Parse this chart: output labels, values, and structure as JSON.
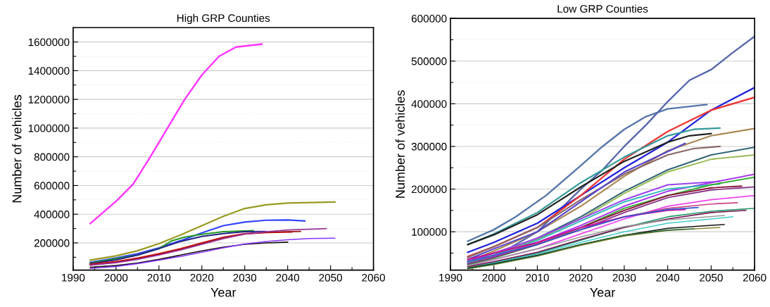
{
  "chart_data": [
    {
      "type": "line",
      "title": "High GRP Counties",
      "xlabel": "Year",
      "ylabel": "Number of vehicles",
      "xlim": [
        1990,
        2060
      ],
      "ylim": [
        10000,
        1700000
      ],
      "grid": "y",
      "legend": false,
      "marker": "none",
      "line_style": "solid",
      "xticks": [
        1990,
        {
          "value": 1995,
          "label": null
        },
        2000,
        {
          "value": 2005,
          "label": null
        },
        2010,
        {
          "value": 2015,
          "label": null
        },
        2020,
        {
          "value": 2025,
          "label": null
        },
        2030,
        {
          "value": 2035,
          "label": null
        },
        2040,
        {
          "value": 2045,
          "label": null
        },
        2050,
        {
          "value": 2055,
          "label": null
        },
        2060
      ],
      "yticks": [
        {
          "value": 100000,
          "label": null
        },
        200000,
        {
          "value": 300000,
          "label": null
        },
        400000,
        {
          "value": 500000,
          "label": null
        },
        600000,
        {
          "value": 700000,
          "label": null
        },
        800000,
        {
          "value": 900000,
          "label": null
        },
        1000000,
        {
          "value": 1100000,
          "label": null
        },
        1200000,
        {
          "value": 1300000,
          "label": null
        },
        1400000,
        {
          "value": 1500000,
          "label": null
        },
        1600000
      ],
      "series": [
        {
          "color": "#ff33ff",
          "x": [
            1994,
            2000,
            2004,
            2008,
            2012,
            2016,
            2020,
            2024,
            2028,
            2034
          ],
          "values": [
            335000,
            490000,
            610000,
            800000,
            1000000,
            1200000,
            1370000,
            1500000,
            1565000,
            1585000
          ]
        },
        {
          "color": "#999922",
          "x": [
            1994,
            2000,
            2005,
            2010,
            2015,
            2020,
            2025,
            2030,
            2035,
            2040,
            2051
          ],
          "values": [
            80000,
            110000,
            145000,
            195000,
            255000,
            320000,
            385000,
            440000,
            465000,
            478000,
            485000
          ]
        },
        {
          "color": "#3344ff",
          "x": [
            1994,
            2000,
            2005,
            2010,
            2015,
            2020,
            2025,
            2030,
            2035,
            2040,
            2044
          ],
          "values": [
            65000,
            95000,
            125000,
            165000,
            215000,
            270000,
            320000,
            345000,
            358000,
            360000,
            353000
          ]
        },
        {
          "color": "#229922",
          "x": [
            1994,
            2000,
            2005,
            2010,
            2013,
            2016,
            2020,
            2025,
            2032
          ],
          "values": [
            60000,
            90000,
            115000,
            160000,
            215000,
            240000,
            260000,
            278000,
            285000
          ]
        },
        {
          "color": "#222288",
          "x": [
            1994,
            2000,
            2005,
            2010,
            2015,
            2020,
            2025,
            2030,
            2035
          ],
          "values": [
            55000,
            82000,
            115000,
            160000,
            210000,
            245000,
            265000,
            278000,
            280000
          ]
        },
        {
          "color": "#dd1111",
          "x": [
            1994,
            2000,
            2005,
            2010,
            2015,
            2020,
            2025,
            2030,
            2035,
            2041
          ],
          "values": [
            50000,
            70000,
            95000,
            125000,
            160000,
            200000,
            240000,
            265000,
            272000,
            275000
          ]
        },
        {
          "color": "#991111",
          "x": [
            1994,
            2000,
            2005,
            2010,
            2015,
            2020,
            2025,
            2030,
            2036,
            2043
          ],
          "values": [
            45000,
            65000,
            90000,
            120000,
            155000,
            195000,
            235000,
            262000,
            275000,
            280000
          ]
        },
        {
          "color": "#993399",
          "x": [
            1994,
            2000,
            2005,
            2010,
            2015,
            2020,
            2025,
            2030,
            2035,
            2040,
            2049
          ],
          "values": [
            45000,
            62000,
            85000,
            115000,
            150000,
            190000,
            230000,
            262000,
            278000,
            290000,
            300000
          ]
        },
        {
          "color": "#111111",
          "x": [
            1994,
            2000,
            2005,
            2010,
            2015,
            2020,
            2025,
            2030,
            2035,
            2040
          ],
          "values": [
            30000,
            42000,
            60000,
            85000,
            115000,
            145000,
            170000,
            190000,
            200000,
            205000
          ]
        },
        {
          "color": "#8833ff",
          "x": [
            1994,
            2000,
            2005,
            2010,
            2015,
            2020,
            2025,
            2030,
            2035,
            2040,
            2045,
            2051
          ],
          "values": [
            22000,
            35000,
            55000,
            80000,
            105000,
            135000,
            165000,
            192000,
            210000,
            222000,
            230000,
            233000
          ]
        }
      ]
    },
    {
      "type": "line",
      "title": "Low GRP Counties",
      "xlabel": "Year",
      "ylabel": "Number of vehicles",
      "xlim": [
        1990,
        2060
      ],
      "ylim": [
        10000,
        600000
      ],
      "grid": "y",
      "legend": false,
      "marker": "none",
      "line_style": "solid",
      "xticks": [
        1990,
        {
          "value": 1995,
          "label": null
        },
        2000,
        {
          "value": 2005,
          "label": null
        },
        2010,
        {
          "value": 2015,
          "label": null
        },
        2020,
        {
          "value": 2025,
          "label": null
        },
        2030,
        {
          "value": 2035,
          "label": null
        },
        2040,
        {
          "value": 2045,
          "label": null
        },
        2050,
        {
          "value": 2055,
          "label": null
        },
        2060
      ],
      "yticks": [
        {
          "value": 50000,
          "label": null
        },
        100000,
        {
          "value": 150000,
          "label": null
        },
        200000,
        {
          "value": 250000,
          "label": null
        },
        300000,
        {
          "value": 350000,
          "label": null
        },
        400000,
        {
          "value": 450000,
          "label": null
        },
        500000,
        {
          "value": 550000,
          "label": null
        },
        600000
      ],
      "series": [
        {
          "color": "#5577aa",
          "x": [
            1994,
            2000,
            2005,
            2012,
            2020,
            2025,
            2030,
            2035,
            2040,
            2049
          ],
          "values": [
            78000,
            105000,
            135000,
            185000,
            255000,
            300000,
            340000,
            370000,
            388000,
            398000
          ]
        },
        {
          "color": "#5566aa",
          "x": [
            1994,
            2000,
            2010,
            2020,
            2025,
            2030,
            2035,
            2040,
            2045,
            2050,
            2055,
            2060
          ],
          "values": [
            20000,
            40000,
            100000,
            200000,
            245000,
            300000,
            350000,
            405000,
            455000,
            480000,
            520000,
            558000
          ]
        },
        {
          "color": "#2222dd",
          "x": [
            1994,
            2000,
            2010,
            2020,
            2030,
            2040,
            2050,
            2060
          ],
          "values": [
            52000,
            75000,
            120000,
            185000,
            250000,
            310000,
            385000,
            438000
          ]
        },
        {
          "color": "#ee3333",
          "x": [
            1994,
            2000,
            2010,
            2020,
            2030,
            2040,
            2050,
            2060
          ],
          "values": [
            42000,
            65000,
            110000,
            185000,
            270000,
            335000,
            385000,
            415000
          ]
        },
        {
          "color": "#339999",
          "x": [
            1994,
            2000,
            2010,
            2020,
            2030,
            2040,
            2046,
            2052
          ],
          "values": [
            70000,
            95000,
            145000,
            215000,
            275000,
            325000,
            340000,
            343000
          ]
        },
        {
          "color": "#222222",
          "x": [
            1994,
            2000,
            2010,
            2020,
            2030,
            2040,
            2045,
            2050
          ],
          "values": [
            70000,
            93000,
            140000,
            205000,
            265000,
            310000,
            325000,
            330000
          ]
        },
        {
          "color": "#aa8855",
          "x": [
            1994,
            2000,
            2010,
            2020,
            2030,
            2040,
            2050,
            2060
          ],
          "values": [
            30000,
            55000,
            100000,
            160000,
            230000,
            290000,
            325000,
            342000
          ]
        },
        {
          "color": "#886666",
          "x": [
            1994,
            2000,
            2010,
            2020,
            2030,
            2040,
            2046,
            2052
          ],
          "values": [
            40000,
            65000,
            110000,
            175000,
            235000,
            280000,
            295000,
            300000
          ]
        },
        {
          "color": "#5544cc",
          "x": [
            1994,
            2000,
            2010,
            2020,
            2030,
            2044
          ],
          "values": [
            35000,
            60000,
            100000,
            170000,
            240000,
            307000
          ]
        },
        {
          "color": "#336677",
          "x": [
            1994,
            2000,
            2010,
            2020,
            2030,
            2040,
            2050,
            2060
          ],
          "values": [
            25000,
            45000,
            85000,
            135000,
            195000,
            245000,
            280000,
            298000
          ]
        },
        {
          "color": "#99bb55",
          "x": [
            1994,
            2000,
            2010,
            2020,
            2030,
            2040,
            2050,
            2060
          ],
          "values": [
            29000,
            50000,
            82000,
            130000,
            190000,
            240000,
            270000,
            280000
          ]
        },
        {
          "color": "#9944ee",
          "x": [
            1994,
            2000,
            2010,
            2020,
            2030,
            2040,
            2052
          ],
          "values": [
            30000,
            50000,
            85000,
            130000,
            175000,
            210000,
            218000
          ]
        },
        {
          "color": "#aa33ee",
          "x": [
            1994,
            2000,
            2010,
            2020,
            2030,
            2040,
            2050,
            2060
          ],
          "values": [
            25000,
            42000,
            75000,
            115000,
            160000,
            195000,
            215000,
            235000
          ]
        },
        {
          "color": "#33bbbb",
          "x": [
            1994,
            2000,
            2010,
            2020,
            2030,
            2040,
            2052
          ],
          "values": [
            28000,
            45000,
            80000,
            125000,
            170000,
            200000,
            212000
          ]
        },
        {
          "color": "#33aa33",
          "x": [
            1994,
            2000,
            2010,
            2020,
            2030,
            2040,
            2050,
            2060
          ],
          "values": [
            22000,
            38000,
            70000,
            110000,
            155000,
            185000,
            210000,
            228000
          ]
        },
        {
          "color": "#881133",
          "x": [
            1994,
            2000,
            2010,
            2020,
            2030,
            2040,
            2050,
            2057
          ],
          "values": [
            35000,
            50000,
            75000,
            110000,
            150000,
            185000,
            203000,
            207000
          ]
        },
        {
          "color": "#883388",
          "x": [
            1994,
            2000,
            2010,
            2020,
            2030,
            2040,
            2050,
            2060
          ],
          "values": [
            25000,
            40000,
            70000,
            105000,
            145000,
            180000,
            198000,
            205000
          ]
        },
        {
          "color": "#ee44ee",
          "x": [
            1994,
            2000,
            2010,
            2020,
            2030,
            2040,
            2050,
            2060
          ],
          "values": [
            20000,
            35000,
            60000,
            95000,
            130000,
            160000,
            175000,
            185000
          ]
        },
        {
          "color": "#cc4488",
          "x": [
            1994,
            2000,
            2010,
            2020,
            2030,
            2040,
            2050,
            2056
          ],
          "values": [
            30000,
            45000,
            72000,
            105000,
            135000,
            155000,
            165000,
            168000
          ]
        },
        {
          "color": "#cc11aa",
          "x": [
            1994,
            2000,
            2010,
            2020,
            2030,
            2040,
            2044
          ],
          "values": [
            35000,
            50000,
            75000,
            110000,
            135000,
            150000,
            152000
          ]
        },
        {
          "color": "#3355cc",
          "x": [
            1994,
            2000,
            2010,
            2020,
            2030,
            2040,
            2047
          ],
          "values": [
            30000,
            45000,
            70000,
            105000,
            135000,
            152000,
            157000
          ]
        },
        {
          "color": "#229966",
          "x": [
            1994,
            2000,
            2010,
            2020,
            2030,
            2040,
            2050,
            2060
          ],
          "values": [
            15000,
            28000,
            50000,
            80000,
            110000,
            135000,
            148000,
            155000
          ]
        },
        {
          "color": "#771155",
          "x": [
            1994,
            2000,
            2010,
            2020,
            2030,
            2040,
            2050,
            2058
          ],
          "values": [
            18000,
            30000,
            52000,
            82000,
            110000,
            130000,
            145000,
            150000
          ]
        },
        {
          "color": "#999999",
          "x": [
            1994,
            2000,
            2010,
            2020,
            2030,
            2040,
            2053
          ],
          "values": [
            20000,
            35000,
            60000,
            88000,
            112000,
            128000,
            138000
          ]
        },
        {
          "color": "#44cccc",
          "x": [
            1994,
            2000,
            2010,
            2020,
            2030,
            2040,
            2055
          ],
          "values": [
            15000,
            27000,
            48000,
            75000,
            100000,
            120000,
            135000
          ]
        },
        {
          "color": "#111111",
          "x": [
            1994,
            2000,
            2010,
            2020,
            2030,
            2040,
            2053
          ],
          "values": [
            15000,
            25000,
            45000,
            70000,
            92000,
            108000,
            117000
          ]
        },
        {
          "color": "#888833",
          "x": [
            1994,
            2000,
            2010,
            2020,
            2030,
            2040,
            2052
          ],
          "values": [
            13000,
            23000,
            43000,
            68000,
            90000,
            103000,
            110000
          ]
        },
        {
          "color": "#226633",
          "x": [
            1994,
            2000,
            2010,
            2020,
            2030,
            2040,
            2046
          ],
          "values": [
            14000,
            24000,
            44000,
            70000,
            92000,
            104000,
            107000
          ]
        }
      ]
    }
  ]
}
